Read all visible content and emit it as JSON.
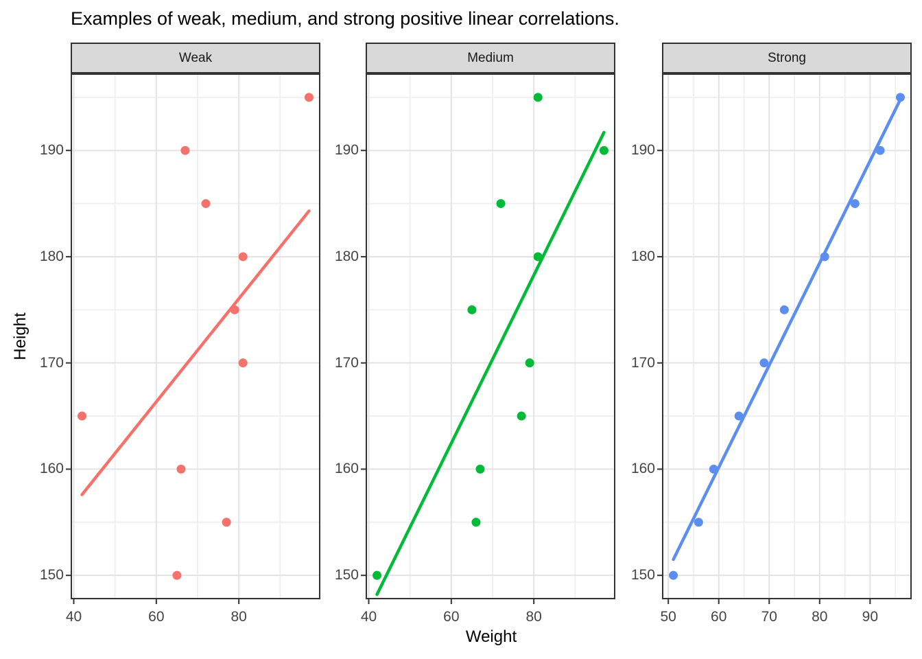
{
  "title": "Examples of weak, medium, and strong positive linear correlations.",
  "x_axis_label": "Weight",
  "y_axis_label": "Height",
  "chart_data": {
    "type": "scatter",
    "title": "Examples of weak, medium, and strong positive linear correlations.",
    "xlabel": "Weight",
    "ylabel": "Height",
    "legend": "none",
    "grid": true,
    "ylim": [
      147.75,
      197.25
    ],
    "y_ticks": [
      150,
      160,
      170,
      180,
      190
    ],
    "y_minor": [
      155,
      165,
      175,
      185,
      195
    ],
    "style": {
      "strip_fill": "#D9D9D9",
      "panel_border": "#333333",
      "grid_major": "#E3E3E3",
      "grid_minor": "#F0F0F0",
      "tick_mark": "#333333",
      "tick_text": "#444444",
      "background": "#FFFFFF"
    },
    "facets": [
      {
        "label": "Weak",
        "color": "#F3736C",
        "xlim": [
          39.25,
          99.75
        ],
        "x_ticks": [
          40,
          60,
          80
        ],
        "x_minor": [
          50,
          70,
          90
        ],
        "points": [
          [
            42,
            165
          ],
          [
            65,
            150
          ],
          [
            66,
            160
          ],
          [
            67,
            190
          ],
          [
            72,
            185
          ],
          [
            77,
            155
          ],
          [
            79,
            175
          ],
          [
            81,
            170
          ],
          [
            81,
            180
          ],
          [
            97,
            195
          ]
        ],
        "trend": {
          "x1": 42,
          "y1": 157.6,
          "x2": 97,
          "y2": 184.3
        }
      },
      {
        "label": "Medium",
        "color": "#00BA38",
        "xlim": [
          39.25,
          99.75
        ],
        "x_ticks": [
          40,
          60,
          80
        ],
        "x_minor": [
          50,
          70,
          90
        ],
        "points": [
          [
            42,
            150
          ],
          [
            65,
            175
          ],
          [
            66,
            155
          ],
          [
            67,
            160
          ],
          [
            72,
            185
          ],
          [
            77,
            165
          ],
          [
            79,
            170
          ],
          [
            81,
            180
          ],
          [
            81,
            195
          ],
          [
            97,
            190
          ]
        ],
        "trend": {
          "x1": 42,
          "y1": 148.2,
          "x2": 97,
          "y2": 191.7
        }
      },
      {
        "label": "Strong",
        "color": "#5C8EEF",
        "xlim": [
          48.75,
          98.25
        ],
        "x_ticks": [
          50,
          60,
          70,
          80,
          90
        ],
        "x_minor": [
          55,
          65,
          75,
          85,
          95
        ],
        "points": [
          [
            51,
            150
          ],
          [
            56,
            155
          ],
          [
            59,
            160
          ],
          [
            64,
            165
          ],
          [
            69,
            170
          ],
          [
            73,
            175
          ],
          [
            81,
            180
          ],
          [
            87,
            185
          ],
          [
            92,
            190
          ],
          [
            96,
            195
          ]
        ],
        "trend": {
          "x1": 51,
          "y1": 151.5,
          "x2": 96,
          "y2": 194.8
        }
      }
    ]
  }
}
